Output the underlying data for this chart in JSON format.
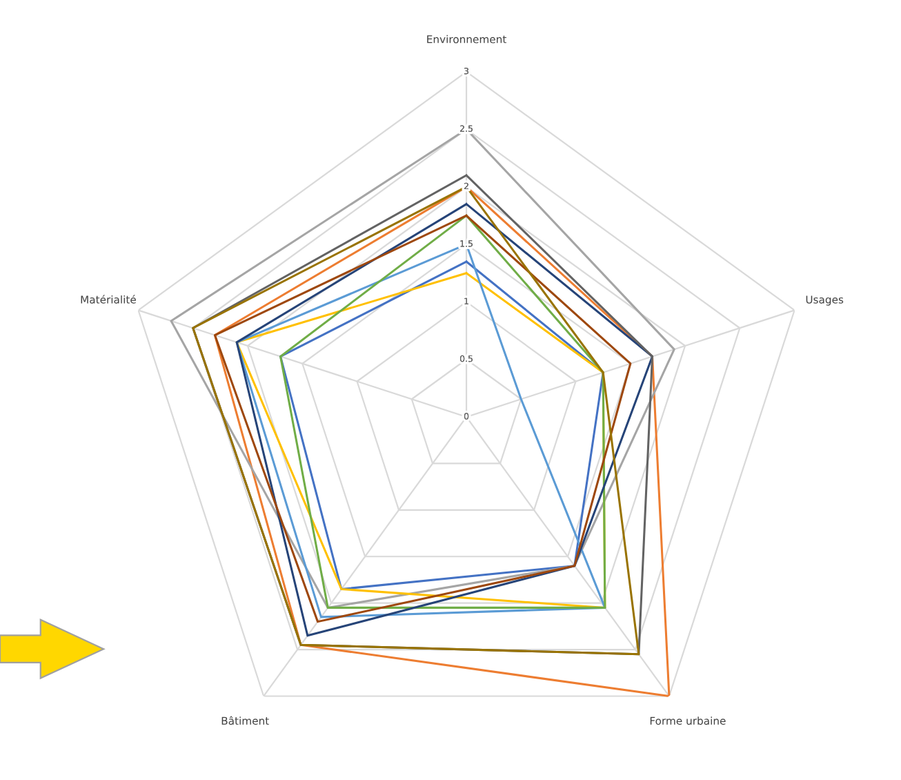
{
  "chart_data": {
    "type": "radar",
    "categories": [
      "Environnement",
      "Usages",
      "Forme urbaine",
      "Bâtiment",
      "Matérialité"
    ],
    "ylim": [
      0,
      3
    ],
    "yticks": [
      0,
      0.5,
      1,
      1.5,
      2,
      2.5,
      3
    ],
    "grid": true,
    "series": [
      {
        "color": "#4472c4",
        "values": [
          1.35,
          1.25,
          1.6,
          1.85,
          1.7
        ]
      },
      {
        "color": "#ed7d31",
        "values": [
          2.0,
          1.7,
          3.0,
          2.45,
          2.3
        ]
      },
      {
        "color": "#a5a5a5",
        "values": [
          2.5,
          1.9,
          1.6,
          2.05,
          2.7
        ]
      },
      {
        "color": "#ffc000",
        "values": [
          1.25,
          1.25,
          2.05,
          1.85,
          2.1
        ]
      },
      {
        "color": "#5b9bd5",
        "values": [
          1.5,
          0.5,
          2.05,
          2.15,
          2.1
        ]
      },
      {
        "color": "#70ad47",
        "values": [
          1.75,
          1.25,
          2.05,
          2.05,
          1.7
        ]
      },
      {
        "color": "#264478",
        "values": [
          1.85,
          1.7,
          1.6,
          2.35,
          2.1
        ]
      },
      {
        "color": "#9e480e",
        "values": [
          1.75,
          1.5,
          1.6,
          2.2,
          2.3
        ]
      },
      {
        "color": "#636363",
        "values": [
          2.1,
          1.7,
          2.55,
          2.45,
          2.5
        ]
      },
      {
        "color": "#997300",
        "values": [
          2.0,
          1.25,
          2.55,
          2.45,
          2.5
        ]
      }
    ]
  }
}
